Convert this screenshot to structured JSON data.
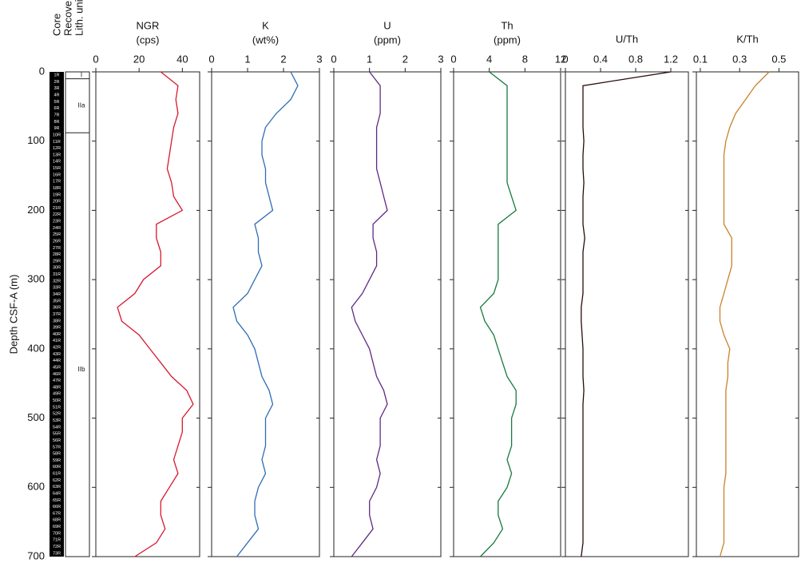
{
  "core_column": {
    "headers": [
      "Core",
      "Recovery",
      "Lith. unit"
    ],
    "cores": [
      "1R",
      "2R",
      "3R",
      "4R",
      "5R",
      "6R",
      "7R",
      "8R",
      "9R",
      "10R",
      "11R",
      "12R",
      "13R",
      "14R",
      "15R",
      "16R",
      "17R",
      "18R",
      "19R",
      "20R",
      "21R",
      "22R",
      "23R",
      "24R",
      "25R",
      "26R",
      "27R",
      "28R",
      "29R",
      "30R",
      "31R",
      "32R",
      "33R",
      "34R",
      "35R",
      "36R",
      "37R",
      "38R",
      "39R",
      "40R",
      "41R",
      "42R",
      "43R",
      "44R",
      "45R",
      "46R",
      "47R",
      "48R",
      "49R",
      "50R",
      "51R",
      "52R",
      "53R",
      "54R",
      "55R",
      "56R",
      "57R",
      "58R",
      "59R",
      "60R",
      "61R",
      "62R",
      "63R",
      "64R",
      "65R",
      "66R",
      "67R",
      "68R",
      "69R",
      "70R",
      "71R",
      "72R",
      "73R"
    ],
    "units": [
      {
        "label": "I",
        "top": 0,
        "base": 10
      },
      {
        "label": "IIa",
        "top": 10,
        "base": 88
      },
      {
        "label": "IIb",
        "top": 88,
        "base": 700
      }
    ]
  },
  "chart_data": [
    {
      "type": "line",
      "title": "NGR",
      "subtitle": "(cps)",
      "color": "#d7192f",
      "ylabel": "Depth CSF-A (m)",
      "depth": [
        0,
        20,
        40,
        60,
        80,
        100,
        120,
        140,
        160,
        180,
        200,
        220,
        240,
        260,
        280,
        300,
        320,
        340,
        360,
        380,
        400,
        420,
        440,
        460,
        480,
        500,
        520,
        540,
        560,
        580,
        600,
        620,
        640,
        660,
        680,
        700
      ],
      "values": [
        30,
        38,
        37,
        38,
        36,
        35,
        34,
        33,
        35,
        36,
        40,
        28,
        28,
        30,
        30,
        22,
        18,
        10,
        12,
        20,
        25,
        30,
        35,
        42,
        45,
        40,
        40,
        38,
        36,
        38,
        34,
        30,
        30,
        32,
        28,
        18
      ],
      "xlim": [
        0,
        48
      ],
      "xticks": [
        0,
        20,
        40
      ],
      "ylim": [
        0,
        700
      ],
      "yticks": [
        0,
        100,
        200,
        300,
        400,
        500,
        600,
        700
      ]
    },
    {
      "type": "line",
      "title": "K",
      "subtitle": "(wt%)",
      "color": "#2f6db3",
      "depth": [
        0,
        20,
        40,
        60,
        80,
        100,
        120,
        140,
        160,
        180,
        200,
        220,
        240,
        260,
        280,
        300,
        320,
        340,
        360,
        380,
        400,
        420,
        440,
        460,
        480,
        500,
        520,
        540,
        560,
        580,
        600,
        620,
        640,
        660,
        680,
        700
      ],
      "values": [
        2.2,
        2.4,
        2.2,
        1.8,
        1.5,
        1.4,
        1.4,
        1.5,
        1.5,
        1.6,
        1.7,
        1.2,
        1.3,
        1.3,
        1.4,
        1.2,
        1.0,
        0.6,
        0.7,
        1.0,
        1.2,
        1.3,
        1.4,
        1.6,
        1.7,
        1.5,
        1.5,
        1.5,
        1.4,
        1.5,
        1.3,
        1.2,
        1.2,
        1.3,
        1.0,
        0.7
      ],
      "xlim": [
        0,
        3
      ],
      "xticks": [
        0,
        1,
        2,
        3
      ],
      "ylim": [
        0,
        700
      ]
    },
    {
      "type": "line",
      "title": "U",
      "subtitle": "(ppm)",
      "color": "#5e2a84",
      "depth": [
        0,
        20,
        40,
        60,
        80,
        100,
        120,
        140,
        160,
        180,
        200,
        220,
        240,
        260,
        280,
        300,
        320,
        340,
        360,
        380,
        400,
        420,
        440,
        460,
        480,
        500,
        520,
        540,
        560,
        580,
        600,
        620,
        640,
        660,
        680,
        700
      ],
      "values": [
        1.0,
        1.3,
        1.3,
        1.3,
        1.2,
        1.2,
        1.2,
        1.2,
        1.3,
        1.4,
        1.5,
        1.1,
        1.1,
        1.2,
        1.2,
        1.0,
        0.8,
        0.5,
        0.6,
        0.8,
        1.0,
        1.1,
        1.2,
        1.4,
        1.5,
        1.3,
        1.3,
        1.3,
        1.2,
        1.3,
        1.2,
        1.0,
        1.0,
        1.1,
        0.8,
        0.5
      ],
      "xlim": [
        0,
        3
      ],
      "xticks": [
        0,
        1,
        2,
        3
      ],
      "ylim": [
        0,
        700
      ]
    },
    {
      "type": "line",
      "title": "Th",
      "subtitle": "(ppm)",
      "color": "#177a3e",
      "depth": [
        0,
        20,
        40,
        60,
        80,
        100,
        120,
        140,
        160,
        180,
        200,
        220,
        240,
        260,
        280,
        300,
        320,
        340,
        360,
        380,
        400,
        420,
        440,
        460,
        480,
        500,
        520,
        540,
        560,
        580,
        600,
        620,
        640,
        660,
        680,
        700
      ],
      "values": [
        4,
        6,
        6,
        6,
        6,
        6,
        6,
        6,
        6,
        6.5,
        7,
        5,
        5,
        5,
        5,
        5,
        4.5,
        3,
        3.5,
        4.5,
        5,
        5.5,
        6,
        7,
        7,
        6.5,
        6.5,
        6.5,
        6,
        6.5,
        6,
        5,
        5,
        5.5,
        4.5,
        3
      ],
      "xlim": [
        0,
        12
      ],
      "xticks": [
        0,
        4,
        8,
        12
      ],
      "ylim": [
        0,
        700
      ]
    },
    {
      "type": "line",
      "title": "U/Th",
      "color": "#2b0a0a",
      "depth": [
        0,
        20,
        40,
        60,
        80,
        100,
        120,
        140,
        160,
        180,
        200,
        220,
        240,
        260,
        280,
        300,
        320,
        340,
        360,
        380,
        400,
        420,
        440,
        460,
        480,
        500,
        520,
        540,
        560,
        580,
        600,
        620,
        640,
        660,
        680,
        700
      ],
      "values": [
        1.2,
        0.2,
        0.2,
        0.2,
        0.2,
        0.21,
        0.2,
        0.2,
        0.21,
        0.2,
        0.2,
        0.2,
        0.22,
        0.2,
        0.2,
        0.2,
        0.2,
        0.18,
        0.18,
        0.19,
        0.2,
        0.2,
        0.2,
        0.21,
        0.2,
        0.2,
        0.2,
        0.2,
        0.2,
        0.2,
        0.2,
        0.2,
        0.2,
        0.2,
        0.2,
        0.18
      ],
      "xlim": [
        0,
        1.4
      ],
      "xticks": [
        0,
        0.4,
        0.8,
        1.2
      ],
      "ylim": [
        0,
        700
      ]
    },
    {
      "type": "line",
      "title": "K/Th",
      "color": "#c98228",
      "depth": [
        0,
        20,
        40,
        60,
        80,
        100,
        120,
        140,
        160,
        180,
        200,
        220,
        240,
        260,
        280,
        300,
        320,
        340,
        360,
        380,
        400,
        420,
        440,
        460,
        480,
        500,
        520,
        540,
        560,
        580,
        600,
        620,
        640,
        660,
        680,
        700
      ],
      "values": [
        0.45,
        0.38,
        0.33,
        0.28,
        0.25,
        0.23,
        0.22,
        0.22,
        0.22,
        0.22,
        0.22,
        0.22,
        0.26,
        0.26,
        0.26,
        0.24,
        0.22,
        0.2,
        0.2,
        0.22,
        0.25,
        0.24,
        0.24,
        0.23,
        0.23,
        0.23,
        0.23,
        0.23,
        0.23,
        0.23,
        0.22,
        0.22,
        0.22,
        0.22,
        0.22,
        0.2
      ],
      "xlim": [
        0.08,
        0.6
      ],
      "xticks": [
        0.1,
        0.3,
        0.5
      ],
      "ylim": [
        0,
        700
      ]
    }
  ]
}
